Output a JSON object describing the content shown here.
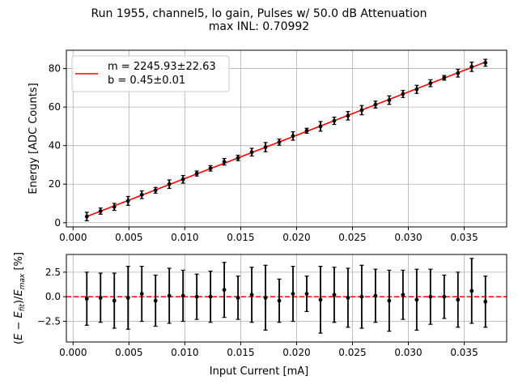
{
  "chart_data": [
    {
      "type": "scatter",
      "title": [
        "Run 1955, channel5, lo gain, Pulses w/ 50.0 dB Attenuation",
        "max INL: 0.70992"
      ],
      "xlabel": "",
      "ylabel": "Energy [ADC Counts]",
      "xlim": [
        -0.0006,
        0.0388
      ],
      "ylim": [
        -2.2,
        89.5
      ],
      "xticks": [
        0.0,
        0.005,
        0.01,
        0.015,
        0.02,
        0.025,
        0.03,
        0.035
      ],
      "xtick_labels": [
        "0.000",
        "0.005",
        "0.010",
        "0.015",
        "0.020",
        "0.025",
        "0.030",
        "0.035"
      ],
      "yticks": [
        0,
        20,
        40,
        60,
        80
      ],
      "ytick_labels": [
        "0",
        "20",
        "40",
        "60",
        "80"
      ],
      "grid": true,
      "legend_position": "top-left",
      "legend": [
        "m = 2245.93±22.63",
        "b = 0.45±0.01"
      ],
      "fit": {
        "slope": 2245.93,
        "intercept": 0.45,
        "color": "#ff0000"
      },
      "series": [
        {
          "name": "data",
          "color": "#000000",
          "x": [
            0.00123,
            0.00246,
            0.00369,
            0.00492,
            0.00615,
            0.00738,
            0.00861,
            0.00984,
            0.01107,
            0.0123,
            0.01353,
            0.01476,
            0.01599,
            0.01722,
            0.01845,
            0.01968,
            0.02091,
            0.02214,
            0.02337,
            0.0246,
            0.02583,
            0.02706,
            0.02829,
            0.02952,
            0.03075,
            0.03198,
            0.03321,
            0.03444,
            0.03567,
            0.0369
          ],
          "y": [
            3.2,
            6.0,
            8.2,
            11.3,
            14.5,
            16.8,
            20.0,
            22.5,
            25.5,
            28.2,
            31.6,
            33.6,
            36.6,
            39.2,
            41.8,
            45.0,
            47.7,
            50.0,
            52.9,
            55.5,
            58.4,
            61.3,
            63.6,
            66.8,
            69.2,
            72.4,
            75.2,
            77.6,
            80.9,
            83.0
          ],
          "yerr": [
            2.2,
            1.6,
            1.8,
            2.3,
            2.0,
            1.5,
            2.2,
            2.0,
            1.3,
            1.4,
            1.7,
            1.4,
            2.0,
            2.4,
            1.6,
            2.2,
            1.3,
            2.5,
            1.9,
            2.2,
            2.4,
            1.8,
            2.2,
            1.8,
            2.1,
            1.8,
            1.2,
            2.0,
            2.4,
            1.8
          ]
        }
      ]
    },
    {
      "type": "scatter",
      "title": "",
      "xlabel": "Input Current [mA]",
      "ylabel": "(E − E_fit)/E_max [%]",
      "xlim": [
        -0.0006,
        0.0388
      ],
      "ylim": [
        -4.6,
        4.3
      ],
      "xticks": [
        0.0,
        0.005,
        0.01,
        0.015,
        0.02,
        0.025,
        0.03,
        0.035
      ],
      "xtick_labels": [
        "0.000",
        "0.005",
        "0.010",
        "0.015",
        "0.020",
        "0.025",
        "0.030",
        "0.035"
      ],
      "yticks": [
        -2.5,
        0.0,
        2.5
      ],
      "ytick_labels": [
        "−2.5",
        "0.0",
        "2.5"
      ],
      "grid": true,
      "reference_line": {
        "y": 0,
        "color": "#ff0000",
        "style": "dashed"
      },
      "series": [
        {
          "name": "residuals",
          "color": "#000000",
          "x": [
            0.00123,
            0.00246,
            0.00369,
            0.00492,
            0.00615,
            0.00738,
            0.00861,
            0.00984,
            0.01107,
            0.0123,
            0.01353,
            0.01476,
            0.01599,
            0.01722,
            0.01845,
            0.01968,
            0.02091,
            0.02214,
            0.02337,
            0.0246,
            0.02583,
            0.02706,
            0.02829,
            0.02952,
            0.03075,
            0.03198,
            0.03321,
            0.03444,
            0.03567,
            0.0369
          ],
          "y": [
            -0.2,
            -0.1,
            -0.4,
            -0.1,
            0.3,
            -0.4,
            0.1,
            0.1,
            0.0,
            0.0,
            0.7,
            -0.1,
            0.2,
            -0.1,
            -0.4,
            0.3,
            0.3,
            -0.3,
            0.2,
            -0.1,
            0.0,
            0.1,
            -0.4,
            0.2,
            -0.3,
            0.0,
            0.0,
            -0.3,
            0.6,
            -0.5
          ],
          "yerr": [
            2.7,
            2.5,
            2.8,
            3.2,
            2.8,
            2.6,
            2.8,
            2.6,
            2.3,
            2.6,
            2.8,
            2.2,
            2.8,
            3.3,
            2.2,
            2.8,
            1.8,
            3.4,
            2.8,
            3.0,
            3.2,
            2.7,
            3.1,
            2.5,
            3.1,
            2.8,
            2.2,
            2.8,
            3.3,
            2.6
          ]
        }
      ]
    }
  ]
}
